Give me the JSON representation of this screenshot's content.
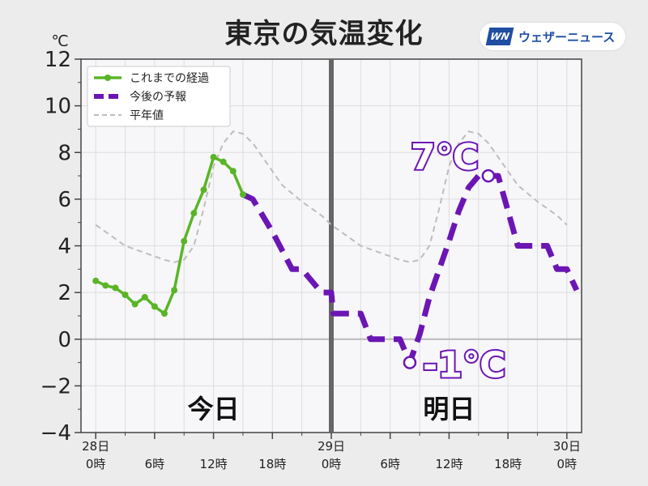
{
  "page_title": "東京の気温変化",
  "brand": {
    "mark": "WN",
    "name": "ウェザーニュース",
    "color": "#1f4ea3"
  },
  "chart_data": {
    "type": "line",
    "ylabel": "℃",
    "ylim": [
      -4,
      12
    ],
    "yticks": [
      -4,
      -2,
      0,
      2,
      4,
      6,
      8,
      10,
      12
    ],
    "ytick_labels": [
      "−4",
      "−2",
      "0",
      "2",
      "4",
      "6",
      "8",
      "10",
      "12"
    ],
    "x_unit": "hour since 28日0時",
    "xlim": [
      -1.5,
      49.5
    ],
    "xticks": [
      {
        "x": 0,
        "line1": "28日",
        "line2": "0時"
      },
      {
        "x": 6,
        "line1": "",
        "line2": "6時"
      },
      {
        "x": 12,
        "line1": "",
        "line2": "12時"
      },
      {
        "x": 18,
        "line1": "",
        "line2": "18時"
      },
      {
        "x": 24,
        "line1": "29日",
        "line2": "0時"
      },
      {
        "x": 30,
        "line1": "",
        "line2": "6時"
      },
      {
        "x": 36,
        "line1": "",
        "line2": "12時"
      },
      {
        "x": 42,
        "line1": "",
        "line2": "18時"
      },
      {
        "x": 48,
        "line1": "30日",
        "line2": "0時"
      }
    ],
    "grid": true,
    "legend_position": "top-left",
    "day_divider_x": 24,
    "day_labels": [
      {
        "x": 12,
        "text": "今日"
      },
      {
        "x": 36,
        "text": "明日"
      }
    ],
    "series": [
      {
        "name": "これまでの経過",
        "style": "solid-markers",
        "color": "#5ab526",
        "points": [
          [
            0,
            2.5
          ],
          [
            1,
            2.3
          ],
          [
            2,
            2.2
          ],
          [
            3,
            1.9
          ],
          [
            4,
            1.5
          ],
          [
            5,
            1.8
          ],
          [
            6,
            1.4
          ],
          [
            7,
            1.1
          ],
          [
            8,
            2.1
          ],
          [
            9,
            4.2
          ],
          [
            10,
            5.4
          ],
          [
            11,
            6.4
          ],
          [
            12,
            7.8
          ],
          [
            13,
            7.6
          ],
          [
            14,
            7.2
          ],
          [
            15,
            6.2
          ]
        ]
      },
      {
        "name": "今後の予報",
        "style": "dashed",
        "color": "#6b16b4",
        "points": [
          [
            15,
            6.2
          ],
          [
            16,
            6.0
          ],
          [
            18,
            4.6
          ],
          [
            20,
            3.0
          ],
          [
            21,
            3.0
          ],
          [
            23,
            2.0
          ],
          [
            24,
            2.0
          ],
          [
            24.2,
            1.1
          ],
          [
            26,
            1.1
          ],
          [
            27,
            1.1
          ],
          [
            28,
            0.0
          ],
          [
            30,
            0.0
          ],
          [
            31,
            0.0
          ],
          [
            32,
            -1.0
          ],
          [
            33,
            0.2
          ],
          [
            34,
            1.8
          ],
          [
            36,
            4.2
          ],
          [
            37,
            5.5
          ],
          [
            38,
            6.5
          ],
          [
            39,
            7.0
          ],
          [
            40,
            7.0
          ],
          [
            41,
            7.0
          ],
          [
            43,
            4.0
          ],
          [
            45,
            4.0
          ],
          [
            46,
            4.0
          ],
          [
            47,
            3.0
          ],
          [
            48,
            3.0
          ],
          [
            49,
            2.1
          ]
        ]
      },
      {
        "name": "平年値",
        "style": "thin-dashed",
        "color": "#bdbdbd",
        "points": [
          [
            0,
            4.9
          ],
          [
            1,
            4.6
          ],
          [
            3,
            4.0
          ],
          [
            5,
            3.7
          ],
          [
            7,
            3.4
          ],
          [
            8,
            3.3
          ],
          [
            9,
            3.4
          ],
          [
            10,
            4.0
          ],
          [
            11,
            5.6
          ],
          [
            12,
            7.4
          ],
          [
            13,
            8.4
          ],
          [
            14,
            8.9
          ],
          [
            15,
            8.8
          ],
          [
            16,
            8.4
          ],
          [
            17,
            7.8
          ],
          [
            18,
            7.2
          ],
          [
            19,
            6.6
          ],
          [
            21,
            5.9
          ],
          [
            23,
            5.3
          ],
          [
            24,
            4.9
          ],
          [
            25,
            4.6
          ],
          [
            27,
            4.0
          ],
          [
            29,
            3.7
          ],
          [
            31,
            3.4
          ],
          [
            32,
            3.3
          ],
          [
            33,
            3.4
          ],
          [
            34,
            4.0
          ],
          [
            35,
            5.6
          ],
          [
            36,
            7.4
          ],
          [
            37,
            8.4
          ],
          [
            38,
            8.9
          ],
          [
            39,
            8.8
          ],
          [
            40,
            8.4
          ],
          [
            41,
            7.8
          ],
          [
            42,
            7.2
          ],
          [
            43,
            6.6
          ],
          [
            45,
            5.9
          ],
          [
            47,
            5.3
          ],
          [
            48,
            4.9
          ]
        ]
      }
    ],
    "annotations": [
      {
        "x": 40,
        "y": 7.0,
        "text": "7℃",
        "position": "above-left"
      },
      {
        "x": 32,
        "y": -1.0,
        "text": "-1℃",
        "position": "right"
      }
    ]
  }
}
